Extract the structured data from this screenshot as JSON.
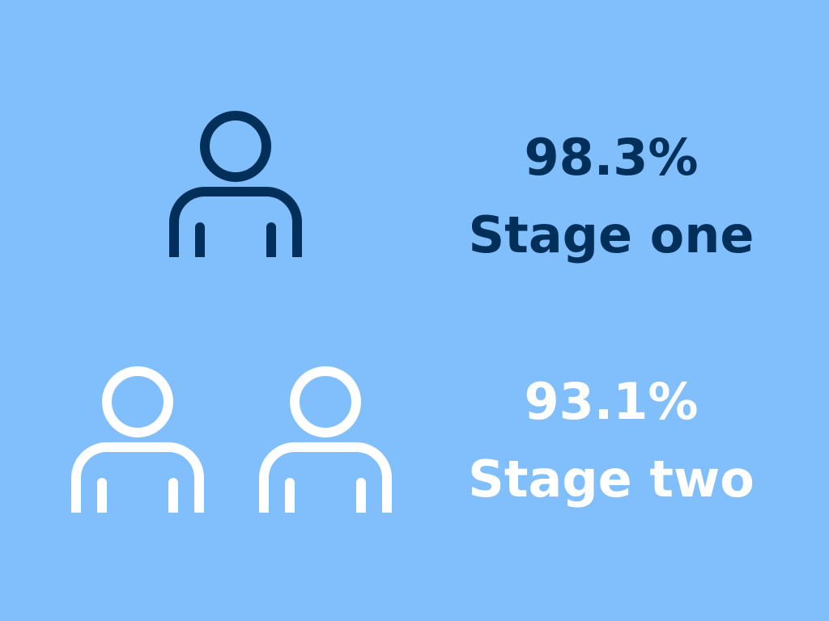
{
  "colors": {
    "background": "#80BEFC",
    "stage_one": "#00305A",
    "stage_two": "#FFFFFF"
  },
  "stages": [
    {
      "value": "98.3%",
      "label": "Stage one",
      "icon": "person-icon",
      "icon_count": 1
    },
    {
      "value": "93.1%",
      "label": "Stage two",
      "icon": "person-icon",
      "icon_count": 2
    }
  ]
}
